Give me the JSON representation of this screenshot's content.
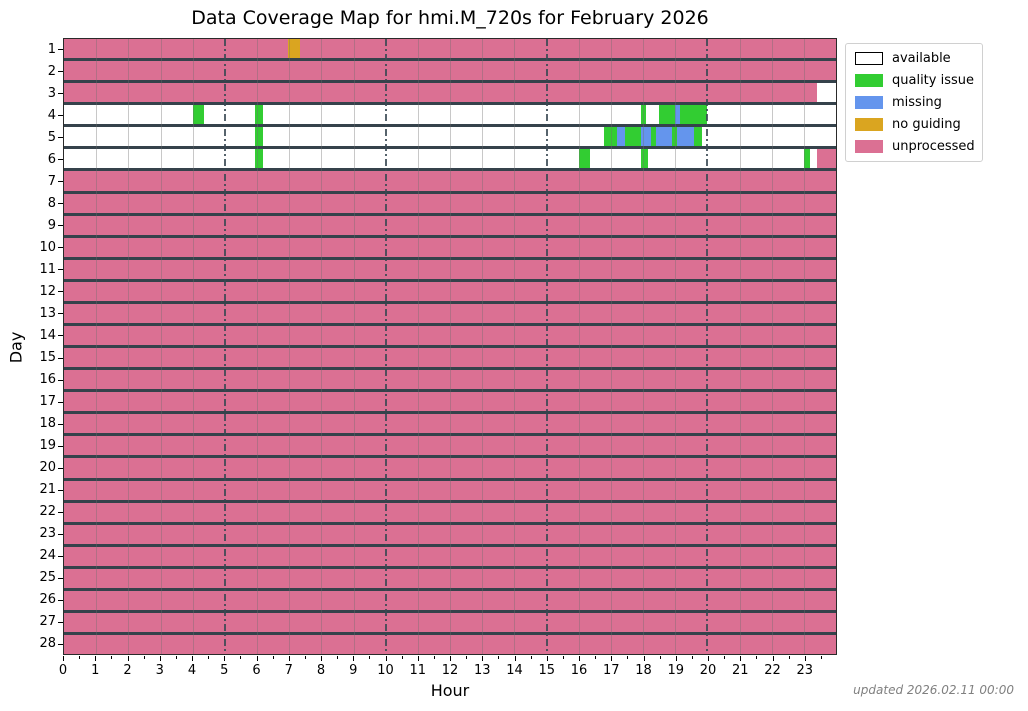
{
  "title": "Data Coverage Map for hmi.M_720s for February 2026",
  "xlabel": "Hour",
  "ylabel": "Day",
  "footnote": "updated 2026.02.11 00:00",
  "legend": [
    {
      "label": "available",
      "color": "#ffffff",
      "border": "#000000"
    },
    {
      "label": "quality issue",
      "color": "#32cd32",
      "border": "#32cd32"
    },
    {
      "label": "missing",
      "color": "#6495ed",
      "border": "#6495ed"
    },
    {
      "label": "no guiding",
      "color": "#daa520",
      "border": "#daa520"
    },
    {
      "label": "unprocessed",
      "color": "#db7093",
      "border": "#db7093"
    }
  ],
  "chart_data": {
    "type": "heatmap",
    "title": "Data Coverage Map for hmi.M_720s for February 2026",
    "xlabel": "Hour",
    "ylabel": "Day",
    "x_range": [
      0,
      24
    ],
    "x_ticks": [
      0,
      1,
      2,
      3,
      4,
      5,
      6,
      7,
      8,
      9,
      10,
      11,
      12,
      13,
      14,
      15,
      16,
      17,
      18,
      19,
      20,
      21,
      22,
      23
    ],
    "major_gridline_hours": [
      5,
      10,
      15,
      20
    ],
    "y_ticks": [
      1,
      2,
      3,
      4,
      5,
      6,
      7,
      8,
      9,
      10,
      11,
      12,
      13,
      14,
      15,
      16,
      17,
      18,
      19,
      20,
      21,
      22,
      23,
      24,
      25,
      26,
      27,
      28
    ],
    "status_colors": {
      "available": "#ffffff",
      "quality issue": "#32cd32",
      "missing": "#6495ed",
      "no guiding": "#daa520",
      "unprocessed": "#db7093"
    },
    "rows": [
      {
        "day": 1,
        "base": "unprocessed",
        "segments": [
          {
            "start": 6.95,
            "end": 7.35,
            "status": "no guiding"
          }
        ]
      },
      {
        "day": 2,
        "base": "unprocessed",
        "segments": []
      },
      {
        "day": 3,
        "base": "unprocessed",
        "segments": [
          {
            "start": 23.4,
            "end": 24,
            "status": "available"
          }
        ]
      },
      {
        "day": 4,
        "base": "available",
        "segments": [
          {
            "start": 4.0,
            "end": 4.35,
            "status": "quality issue"
          },
          {
            "start": 5.95,
            "end": 6.2,
            "status": "quality issue"
          },
          {
            "start": 17.95,
            "end": 18.1,
            "status": "quality issue"
          },
          {
            "start": 18.5,
            "end": 19.0,
            "status": "quality issue"
          },
          {
            "start": 19.0,
            "end": 19.15,
            "status": "missing"
          },
          {
            "start": 19.15,
            "end": 20.0,
            "status": "quality issue"
          }
        ]
      },
      {
        "day": 5,
        "base": "available",
        "segments": [
          {
            "start": 5.95,
            "end": 6.2,
            "status": "quality issue"
          },
          {
            "start": 16.8,
            "end": 17.2,
            "status": "quality issue"
          },
          {
            "start": 17.2,
            "end": 17.45,
            "status": "missing"
          },
          {
            "start": 17.45,
            "end": 17.95,
            "status": "quality issue"
          },
          {
            "start": 17.95,
            "end": 18.25,
            "status": "missing"
          },
          {
            "start": 18.25,
            "end": 18.4,
            "status": "quality issue"
          },
          {
            "start": 18.4,
            "end": 18.9,
            "status": "missing"
          },
          {
            "start": 18.9,
            "end": 19.05,
            "status": "quality issue"
          },
          {
            "start": 19.05,
            "end": 19.6,
            "status": "missing"
          },
          {
            "start": 19.6,
            "end": 19.85,
            "status": "quality issue"
          }
        ]
      },
      {
        "day": 6,
        "base": "available",
        "segments": [
          {
            "start": 5.95,
            "end": 6.2,
            "status": "quality issue"
          },
          {
            "start": 16.0,
            "end": 16.35,
            "status": "quality issue"
          },
          {
            "start": 17.95,
            "end": 18.15,
            "status": "quality issue"
          },
          {
            "start": 23.0,
            "end": 23.2,
            "status": "quality issue"
          },
          {
            "start": 23.4,
            "end": 24.0,
            "status": "unprocessed"
          }
        ]
      },
      {
        "day": 7,
        "base": "unprocessed",
        "segments": []
      },
      {
        "day": 8,
        "base": "unprocessed",
        "segments": []
      },
      {
        "day": 9,
        "base": "unprocessed",
        "segments": []
      },
      {
        "day": 10,
        "base": "unprocessed",
        "segments": []
      },
      {
        "day": 11,
        "base": "unprocessed",
        "segments": []
      },
      {
        "day": 12,
        "base": "unprocessed",
        "segments": []
      },
      {
        "day": 13,
        "base": "unprocessed",
        "segments": []
      },
      {
        "day": 14,
        "base": "unprocessed",
        "segments": []
      },
      {
        "day": 15,
        "base": "unprocessed",
        "segments": []
      },
      {
        "day": 16,
        "base": "unprocessed",
        "segments": []
      },
      {
        "day": 17,
        "base": "unprocessed",
        "segments": []
      },
      {
        "day": 18,
        "base": "unprocessed",
        "segments": []
      },
      {
        "day": 19,
        "base": "unprocessed",
        "segments": []
      },
      {
        "day": 20,
        "base": "unprocessed",
        "segments": []
      },
      {
        "day": 21,
        "base": "unprocessed",
        "segments": []
      },
      {
        "day": 22,
        "base": "unprocessed",
        "segments": []
      },
      {
        "day": 23,
        "base": "unprocessed",
        "segments": []
      },
      {
        "day": 24,
        "base": "unprocessed",
        "segments": []
      },
      {
        "day": 25,
        "base": "unprocessed",
        "segments": []
      },
      {
        "day": 26,
        "base": "unprocessed",
        "segments": []
      },
      {
        "day": 27,
        "base": "unprocessed",
        "segments": []
      },
      {
        "day": 28,
        "base": "unprocessed",
        "segments": []
      }
    ]
  }
}
